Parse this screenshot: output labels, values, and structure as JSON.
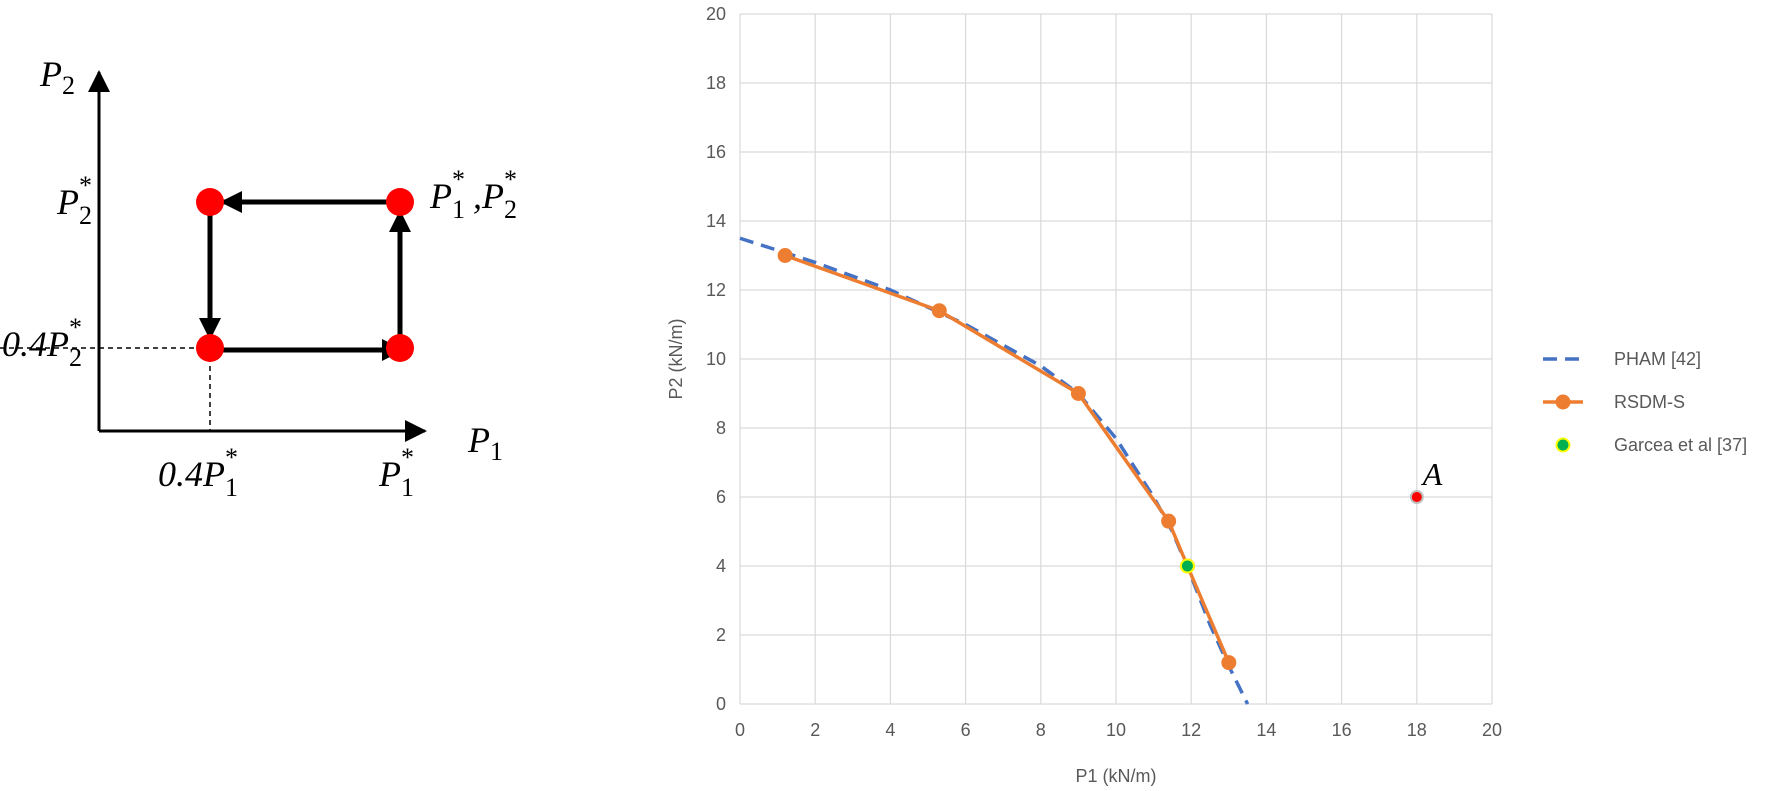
{
  "diagram": {
    "y_axis_label": {
      "main": "P",
      "sub": "2"
    },
    "x_axis_label": {
      "main": "P",
      "sub": "1"
    },
    "p2_star": {
      "main": "P",
      "sub": "2",
      "sup": "*"
    },
    "p2_04": {
      "prefix": "0.4",
      "main": "P",
      "sub": "2",
      "sup": "*"
    },
    "p1_04": {
      "prefix": "0.4",
      "main": "P",
      "sub": "1",
      "sup": "*"
    },
    "p1_star": {
      "main": "P",
      "sub": "1",
      "sup": "*"
    },
    "corner": {
      "main1": "P",
      "sub1": "1",
      "sup1": "*",
      "sep": ",",
      "main2": "P",
      "sub2": "2",
      "sup2": "*"
    }
  },
  "chart_data": {
    "type": "line",
    "x_label": "P1 (kN/m)",
    "y_label": "P2 (kN/m)",
    "xlim": [
      0,
      20
    ],
    "ylim": [
      0,
      20
    ],
    "xticks": [
      0,
      2,
      4,
      6,
      8,
      10,
      12,
      14,
      16,
      18,
      20
    ],
    "yticks": [
      0,
      2,
      4,
      6,
      8,
      10,
      12,
      14,
      16,
      18,
      20
    ],
    "grid": true,
    "legend": "right",
    "series": [
      {
        "name": "PHAM [42]",
        "color": "#4472c4",
        "style": "dashed",
        "marker": false,
        "x": [
          0,
          2,
          4,
          6,
          8,
          9,
          10,
          11,
          11.5,
          12,
          12.5,
          13,
          13.5
        ],
        "values": [
          13.5,
          12.8,
          12.0,
          11.0,
          9.8,
          9.0,
          7.7,
          6.0,
          5.0,
          3.7,
          2.3,
          1.1,
          0
        ]
      },
      {
        "name": "RSDM-S",
        "color": "#ed7d31",
        "style": "solid",
        "marker": true,
        "x": [
          1.2,
          5.3,
          9.0,
          11.4,
          11.9,
          13.0
        ],
        "values": [
          13.0,
          11.4,
          9.0,
          5.3,
          4.0,
          1.2
        ]
      },
      {
        "name": "Garcea et al [37]",
        "color": "#00b050",
        "style": "none",
        "marker": true,
        "edge": "#ffff00",
        "x": [
          11.9
        ],
        "values": [
          4.0
        ]
      }
    ],
    "point_a": {
      "label": "A",
      "x": 18,
      "y": 6,
      "color": "#ff0000"
    }
  }
}
